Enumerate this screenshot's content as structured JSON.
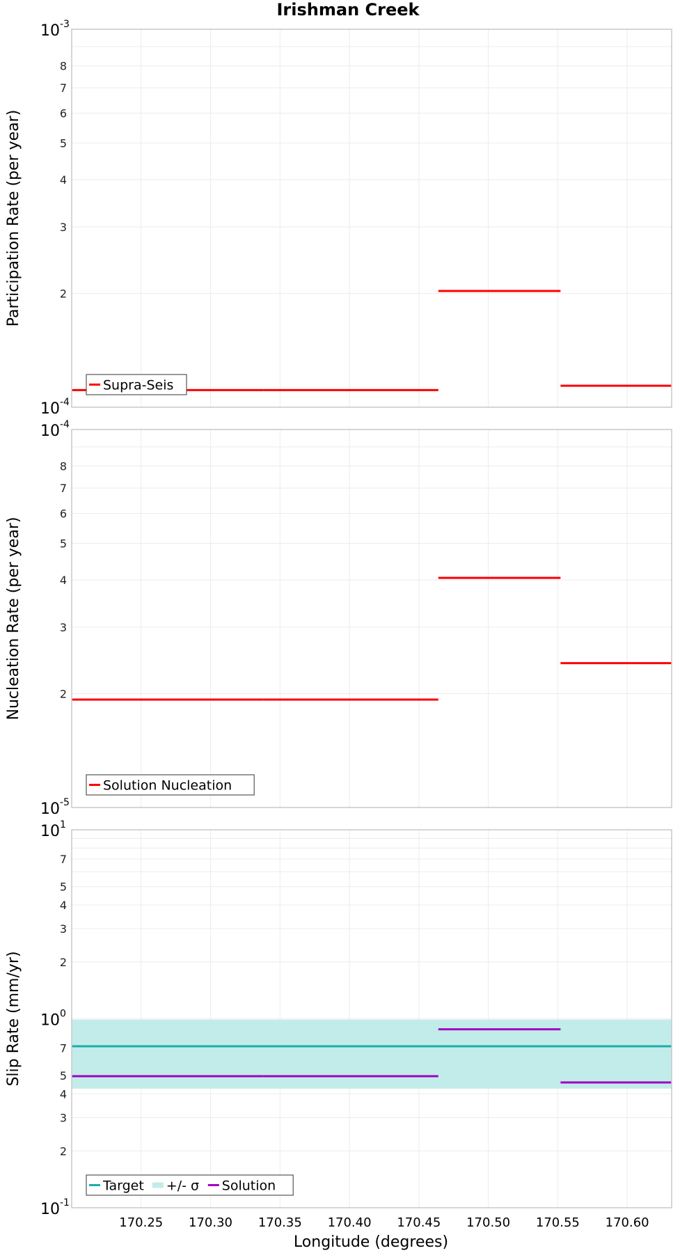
{
  "title": "Irishman Creek",
  "xlabel": "Longitude (degrees)",
  "colors": {
    "solution": "#ff0000",
    "target": "#1aaea8",
    "sigma_band": "#c2ecea",
    "slip_solution": "#a100c2",
    "grid": "#ececec",
    "frame": "#c8c8c8"
  },
  "x_axis": {
    "ticks": [
      170.25,
      170.3,
      170.35,
      170.4,
      170.45,
      170.5,
      170.55,
      170.6
    ],
    "tick_labels": [
      "170.25",
      "170.30",
      "170.35",
      "170.40",
      "170.45",
      "170.50",
      "170.55",
      "170.60"
    ],
    "range": [
      170.2,
      170.632
    ]
  },
  "chart_data": [
    {
      "type": "line",
      "name": "participation",
      "ylabel": "Participation Rate (per year)",
      "yscale": "log",
      "ylim": [
        0.0001,
        0.001
      ],
      "major_ticks": [
        {
          "base": "10",
          "exp": "-3"
        },
        {
          "base": "10",
          "exp": "-4"
        }
      ],
      "minor_ticks": [
        {
          "label": "8",
          "v": 0.0008
        },
        {
          "label": "7",
          "v": 0.0007
        },
        {
          "label": "6",
          "v": 0.0006
        },
        {
          "label": "5",
          "v": 0.0005
        },
        {
          "label": "4",
          "v": 0.0004
        },
        {
          "label": "3",
          "v": 0.0003
        },
        {
          "label": "2",
          "v": 0.0002
        }
      ],
      "series": [
        {
          "name": "Supra-Seis",
          "segments": [
            {
              "x0": 170.2,
              "x1": 170.338,
              "y": 0.000111
            },
            {
              "x0": 170.338,
              "x1": 170.464,
              "y": 0.000111
            },
            {
              "x0": 170.464,
              "x1": 170.552,
              "y": 0.000203
            },
            {
              "x0": 170.552,
              "x1": 170.632,
              "y": 0.000114
            }
          ]
        }
      ],
      "legend": [
        {
          "label": "Supra-Seis",
          "kind": "line"
        }
      ],
      "legend_position": "bottom-left"
    },
    {
      "type": "line",
      "name": "nucleation",
      "ylabel": "Nucleation Rate (per year)",
      "yscale": "log",
      "ylim": [
        1e-05,
        0.0001
      ],
      "major_ticks": [
        {
          "base": "10",
          "exp": "-4"
        },
        {
          "base": "10",
          "exp": "-5"
        }
      ],
      "minor_ticks": [
        {
          "label": "8",
          "v": 8e-05
        },
        {
          "label": "7",
          "v": 7e-05
        },
        {
          "label": "6",
          "v": 6e-05
        },
        {
          "label": "5",
          "v": 5e-05
        },
        {
          "label": "4",
          "v": 4e-05
        },
        {
          "label": "3",
          "v": 3e-05
        },
        {
          "label": "2",
          "v": 2e-05
        }
      ],
      "series": [
        {
          "name": "Solution Nucleation",
          "segments": [
            {
              "x0": 170.2,
              "x1": 170.338,
              "y": 1.93e-05
            },
            {
              "x0": 170.338,
              "x1": 170.464,
              "y": 1.93e-05
            },
            {
              "x0": 170.464,
              "x1": 170.552,
              "y": 4.05e-05
            },
            {
              "x0": 170.552,
              "x1": 170.632,
              "y": 2.41e-05
            }
          ]
        }
      ],
      "legend": [
        {
          "label": "Solution Nucleation",
          "kind": "line"
        }
      ],
      "legend_position": "bottom-left"
    },
    {
      "type": "line",
      "name": "slip",
      "ylabel": "Slip Rate (mm/yr)",
      "yscale": "log",
      "ylim": [
        0.1,
        10
      ],
      "major_ticks": [
        {
          "base": "10",
          "exp": "1"
        },
        {
          "base": "10",
          "exp": "0"
        },
        {
          "base": "10",
          "exp": "-1"
        }
      ],
      "minor_ticks": [
        {
          "label": "7",
          "v": 7
        },
        {
          "label": "5",
          "v": 5
        },
        {
          "label": "4",
          "v": 4
        },
        {
          "label": "3",
          "v": 3
        },
        {
          "label": "2",
          "v": 2
        },
        {
          "label": "7",
          "v": 0.7
        },
        {
          "label": "5",
          "v": 0.5
        },
        {
          "label": "4",
          "v": 0.4
        },
        {
          "label": "3",
          "v": 0.3
        },
        {
          "label": "2",
          "v": 0.2
        }
      ],
      "band": {
        "name": "+/- σ",
        "y0": 0.427,
        "y1": 0.99
      },
      "series": [
        {
          "name": "Target",
          "segments": [
            {
              "x0": 170.2,
              "x1": 170.632,
              "y": 0.715
            }
          ]
        },
        {
          "name": "Solution",
          "segments": [
            {
              "x0": 170.2,
              "x1": 170.338,
              "y": 0.497
            },
            {
              "x0": 170.338,
              "x1": 170.464,
              "y": 0.497
            },
            {
              "x0": 170.464,
              "x1": 170.552,
              "y": 0.88
            },
            {
              "x0": 170.552,
              "x1": 170.632,
              "y": 0.46
            }
          ]
        }
      ],
      "legend": [
        {
          "label": "Target",
          "kind": "line"
        },
        {
          "label": "+/- σ",
          "kind": "band"
        },
        {
          "label": "Solution",
          "kind": "line"
        }
      ],
      "legend_position": "bottom-left"
    }
  ]
}
